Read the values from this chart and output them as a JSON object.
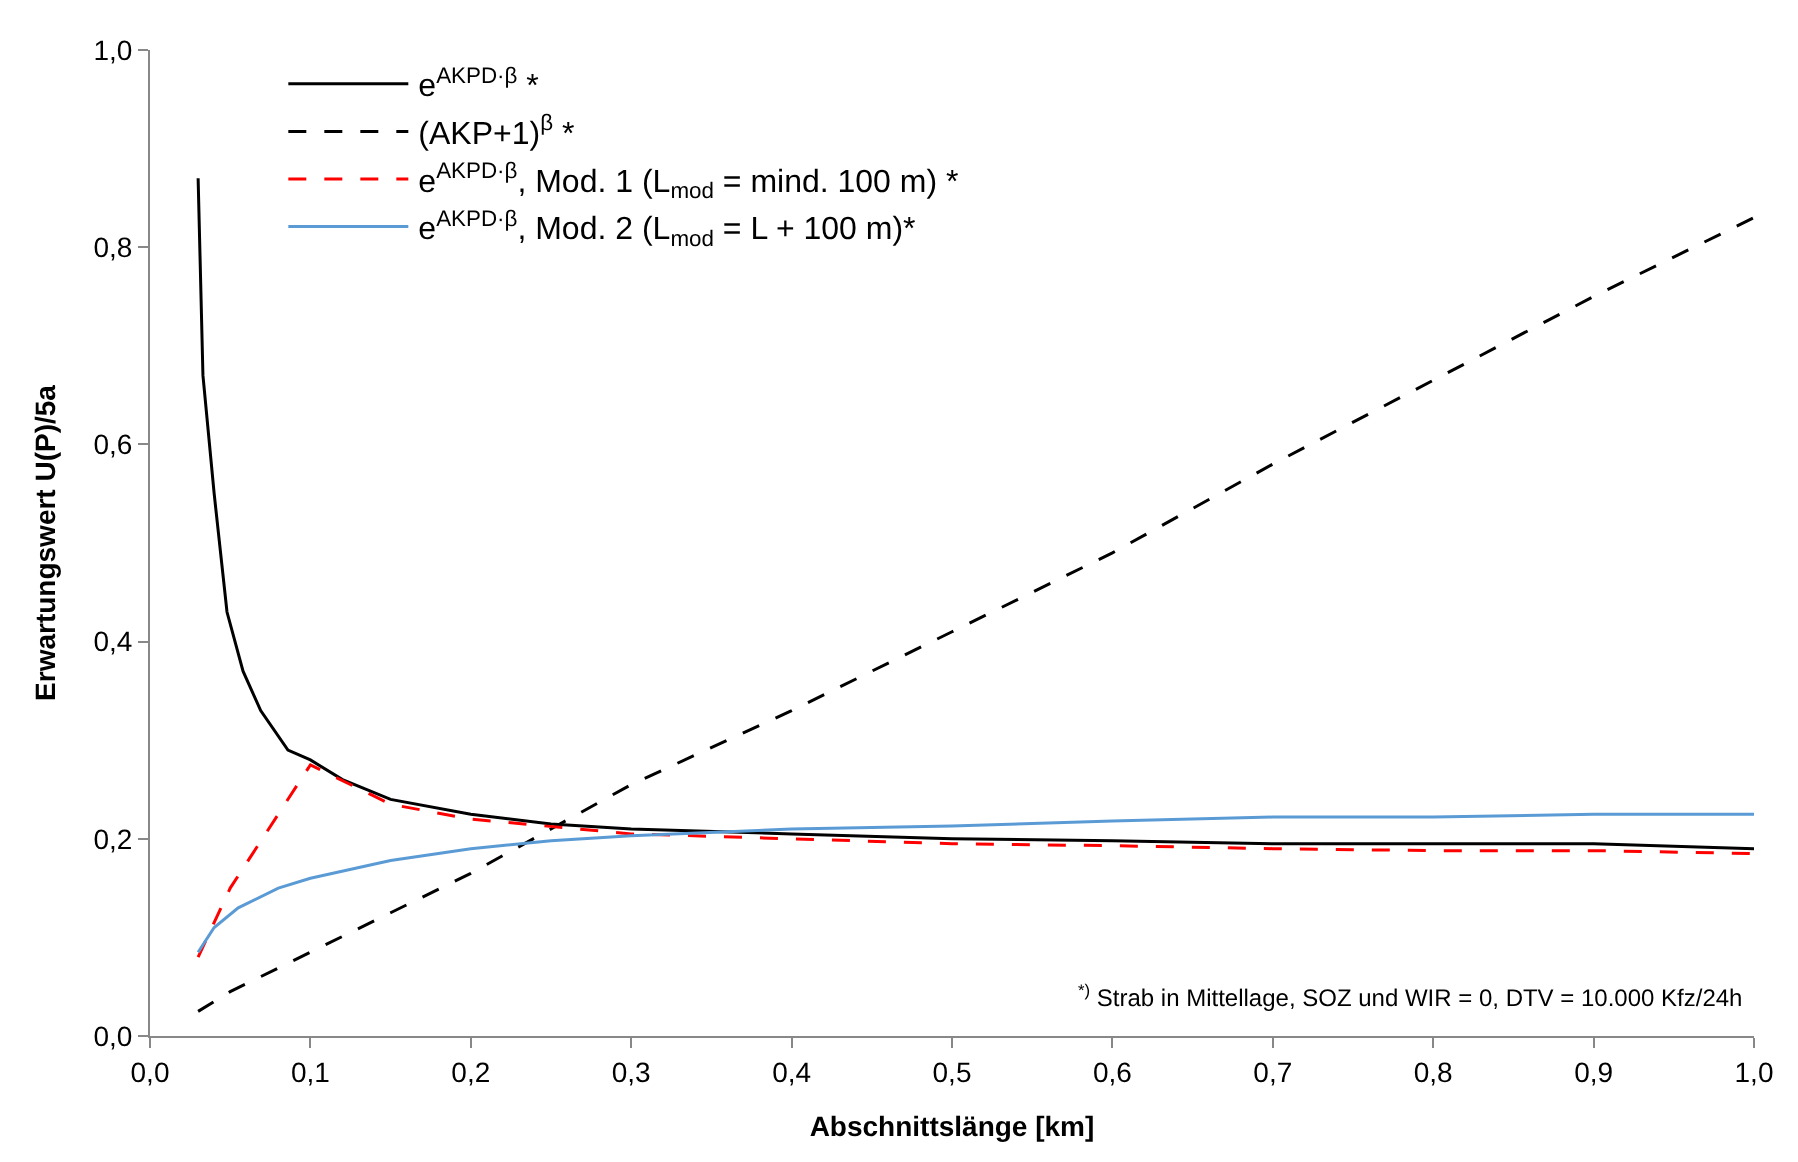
{
  "chart_data": {
    "type": "line",
    "xlabel": "Abschnittslänge [km]",
    "ylabel": "Erwartungswert U(P)/5a",
    "xlim": [
      0,
      1
    ],
    "ylim": [
      0,
      1
    ],
    "xticks": [
      {
        "value": 0,
        "label": "0,0"
      },
      {
        "value": 0.1,
        "label": "0,1"
      },
      {
        "value": 0.2,
        "label": "0,2"
      },
      {
        "value": 0.3,
        "label": "0,3"
      },
      {
        "value": 0.4,
        "label": "0,4"
      },
      {
        "value": 0.5,
        "label": "0,5"
      },
      {
        "value": 0.6,
        "label": "0,6"
      },
      {
        "value": 0.7,
        "label": "0,7"
      },
      {
        "value": 0.8,
        "label": "0,8"
      },
      {
        "value": 0.9,
        "label": "0,9"
      },
      {
        "value": 1,
        "label": "1,0"
      }
    ],
    "yticks": [
      {
        "value": 0,
        "label": "0,0"
      },
      {
        "value": 0.2,
        "label": "0,2"
      },
      {
        "value": 0.4,
        "label": "0,4"
      },
      {
        "value": 0.6,
        "label": "0,6"
      },
      {
        "value": 0.8,
        "label": "0,8"
      },
      {
        "value": 1,
        "label": "1,0"
      }
    ],
    "legend": "top left",
    "marker": "none",
    "series": [
      {
        "name": "e$^{AKPD·β}$ *",
        "color": "#000000",
        "line_style": "solid",
        "x": [
          0.03,
          0.033,
          0.04,
          0.048,
          0.058,
          0.069,
          0.086,
          0.1,
          0.12,
          0.15,
          0.2,
          0.25,
          0.3,
          0.4,
          0.5,
          0.6,
          0.7,
          0.8,
          0.9,
          1.0
        ],
        "values": [
          0.87,
          0.67,
          0.55,
          0.43,
          0.37,
          0.33,
          0.29,
          0.28,
          0.26,
          0.24,
          0.225,
          0.215,
          0.21,
          0.205,
          0.2,
          0.198,
          0.195,
          0.195,
          0.195,
          0.19
        ]
      },
      {
        "name": "(AKP+1)$^{β}$ *",
        "color": "#000000",
        "line_style": "dashed",
        "x": [
          0.03,
          0.05,
          0.1,
          0.15,
          0.2,
          0.25,
          0.3,
          0.4,
          0.5,
          0.6,
          0.7,
          0.8,
          0.9,
          1.0
        ],
        "values": [
          0.025,
          0.045,
          0.085,
          0.125,
          0.165,
          0.21,
          0.255,
          0.33,
          0.41,
          0.49,
          0.58,
          0.665,
          0.75,
          0.83
        ]
      },
      {
        "name": "e$^{AKPD·β}$, Mod. 1 (L$_{mod}$ = mind. 100 m) *",
        "color": "#ff0000",
        "line_style": "dashed",
        "x": [
          0.03,
          0.05,
          0.1,
          0.15,
          0.2,
          0.3,
          0.4,
          0.5,
          0.6,
          0.7,
          0.8,
          0.9,
          1.0
        ],
        "values": [
          0.08,
          0.15,
          0.275,
          0.235,
          0.22,
          0.205,
          0.2,
          0.195,
          0.193,
          0.19,
          0.188,
          0.188,
          0.185
        ]
      },
      {
        "name": "e$^{AKPD·β}$, Mod. 2 (L$_{mod}$ = L + 100 m)*",
        "color": "#5b9bd5",
        "line_style": "solid",
        "x": [
          0.03,
          0.04,
          0.055,
          0.08,
          0.1,
          0.15,
          0.2,
          0.25,
          0.3,
          0.4,
          0.5,
          0.6,
          0.7,
          0.8,
          0.9,
          1.0
        ],
        "values": [
          0.085,
          0.11,
          0.13,
          0.15,
          0.16,
          0.178,
          0.19,
          0.198,
          0.203,
          0.21,
          0.213,
          0.218,
          0.222,
          0.222,
          0.225,
          0.225
        ]
      }
    ],
    "annotations": [
      "$^{*)}$ Strab in Mittellage, SOZ und WIR = 0, DTV = 10.000 Kfz/24h"
    ]
  }
}
